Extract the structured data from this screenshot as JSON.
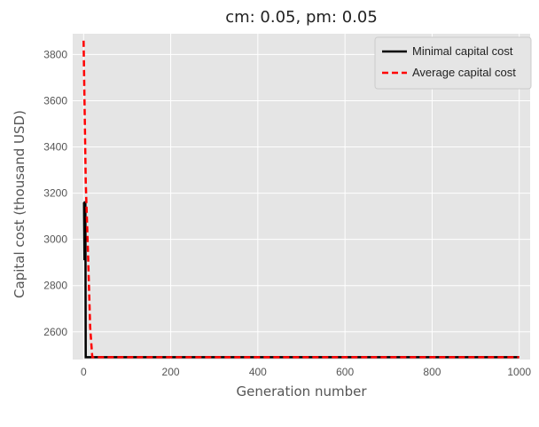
{
  "chart_data": {
    "type": "line",
    "title": "cm: 0.05, pm: 0.05",
    "xlabel": "Generation number",
    "ylabel": "Capital cost (thousand USD)",
    "xlim": [
      -25,
      1025
    ],
    "ylim": [
      2480,
      3890
    ],
    "xticks": [
      0,
      200,
      400,
      600,
      800,
      1000
    ],
    "yticks": [
      2600,
      2800,
      3000,
      3200,
      3400,
      3600,
      3800
    ],
    "grid": true,
    "legend_position": "top-right",
    "series": [
      {
        "name": "Minimal capital cost",
        "color": "#000000",
        "style": "solid",
        "x": [
          0,
          1,
          2,
          3,
          4,
          5,
          1000
        ],
        "y": [
          3160,
          3160,
          2910,
          3160,
          3160,
          2490,
          2490
        ]
      },
      {
        "name": "Average capital cost",
        "color": "#ff0000",
        "style": "dashed",
        "x": [
          0,
          5,
          10,
          15,
          20,
          1000
        ],
        "y": [
          3860,
          3250,
          2950,
          2620,
          2490,
          2490
        ]
      }
    ]
  }
}
